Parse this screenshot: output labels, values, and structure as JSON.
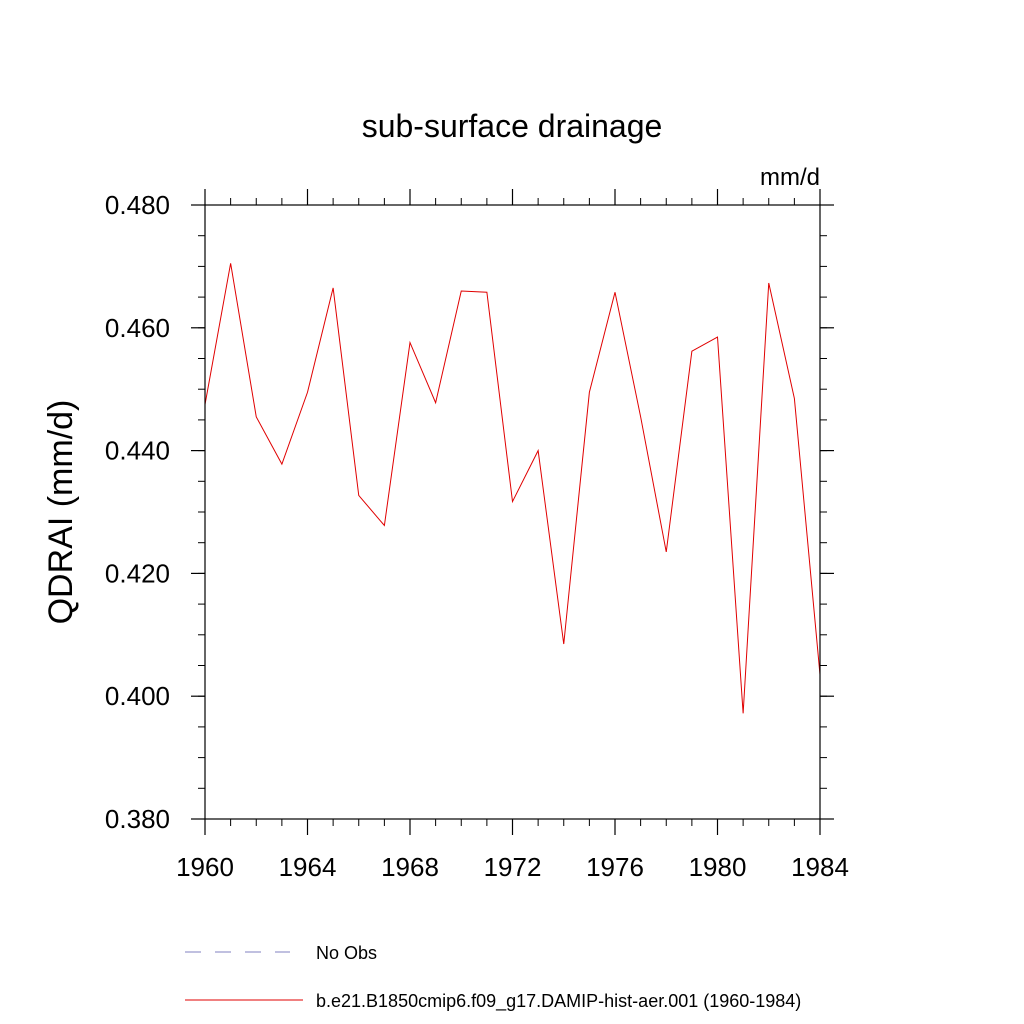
{
  "chart_data": {
    "type": "line",
    "title": "sub-surface drainage",
    "units_label": "mm/d",
    "xlabel": "",
    "ylabel": "QDRAI  (mm/d)",
    "xlim": [
      1960,
      1984
    ],
    "ylim": [
      0.38,
      0.48
    ],
    "x_ticks": [
      1960,
      1964,
      1968,
      1972,
      1976,
      1980,
      1984
    ],
    "x_tick_labels": [
      "1960",
      "1964",
      "1968",
      "1972",
      "1976",
      "1980",
      "1984"
    ],
    "y_ticks": [
      0.38,
      0.4,
      0.42,
      0.44,
      0.46,
      0.48
    ],
    "y_tick_labels": [
      "0.380",
      "0.400",
      "0.420",
      "0.440",
      "0.460",
      "0.480"
    ],
    "y_minor_step": 0.005,
    "x_minor_step": 1,
    "grid": false,
    "legend_position": "bottom",
    "series": [
      {
        "name": "No Obs",
        "color": "#8080c0",
        "style": "dashed",
        "x": [],
        "values": []
      },
      {
        "name": "b.e21.B1850cmip6.f09_g17.DAMIP-hist-aer.001 (1960-1984)",
        "color": "#e00000",
        "style": "solid",
        "x": [
          1960,
          1961,
          1962,
          1963,
          1964,
          1965,
          1966,
          1967,
          1968,
          1969,
          1970,
          1971,
          1972,
          1973,
          1974,
          1975,
          1976,
          1977,
          1978,
          1979,
          1980,
          1981,
          1982,
          1983,
          1984
        ],
        "values": [
          0.4475,
          0.4705,
          0.4455,
          0.4378,
          0.4495,
          0.4665,
          0.4327,
          0.4278,
          0.4576,
          0.4478,
          0.466,
          0.4658,
          0.4317,
          0.44,
          0.4085,
          0.4495,
          0.4658,
          0.4455,
          0.4235,
          0.4562,
          0.4585,
          0.3972,
          0.4673,
          0.4485,
          0.4035
        ]
      }
    ]
  }
}
